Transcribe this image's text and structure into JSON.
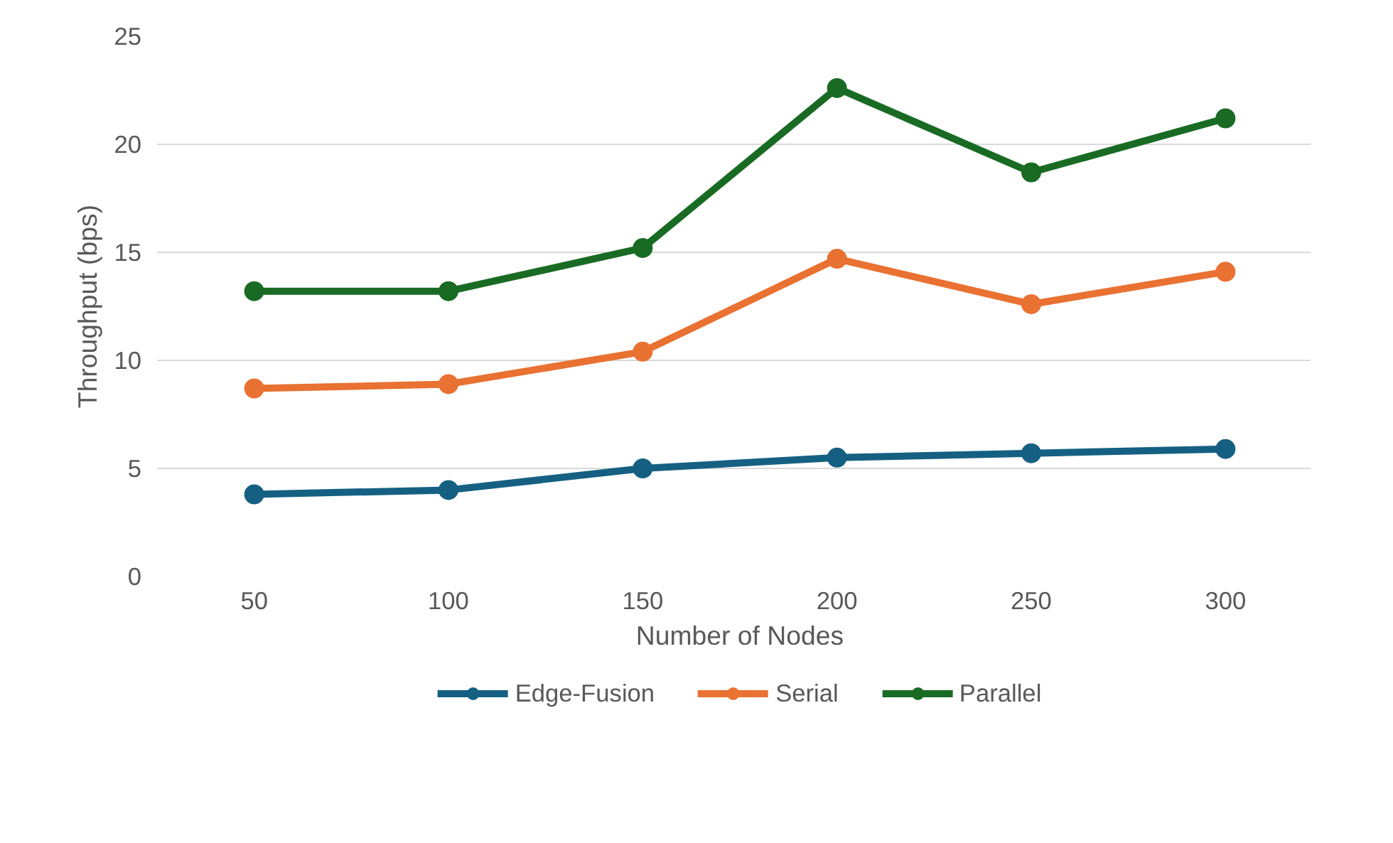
{
  "chart_data": {
    "type": "line",
    "xlabel": "Number of Nodes",
    "ylabel": "Throughput (bps)",
    "categories": [
      "50",
      "100",
      "150",
      "200",
      "250",
      "300"
    ],
    "series": [
      {
        "name": "Edge-Fusion",
        "color": "#156082",
        "values": [
          3.8,
          4.0,
          5.0,
          5.5,
          5.7,
          5.9
        ]
      },
      {
        "name": "Serial",
        "color": "#e97132",
        "values": [
          8.7,
          8.9,
          10.4,
          14.7,
          12.6,
          14.1
        ]
      },
      {
        "name": "Parallel",
        "color": "#196b24",
        "values": [
          13.2,
          13.2,
          15.2,
          22.6,
          18.7,
          21.2
        ]
      }
    ],
    "ylim": [
      0,
      25
    ],
    "yticks": [
      0,
      5,
      10,
      15,
      20,
      25
    ],
    "grid": "y",
    "legend": "bottom",
    "marker": "circle",
    "line_style": "solid"
  }
}
